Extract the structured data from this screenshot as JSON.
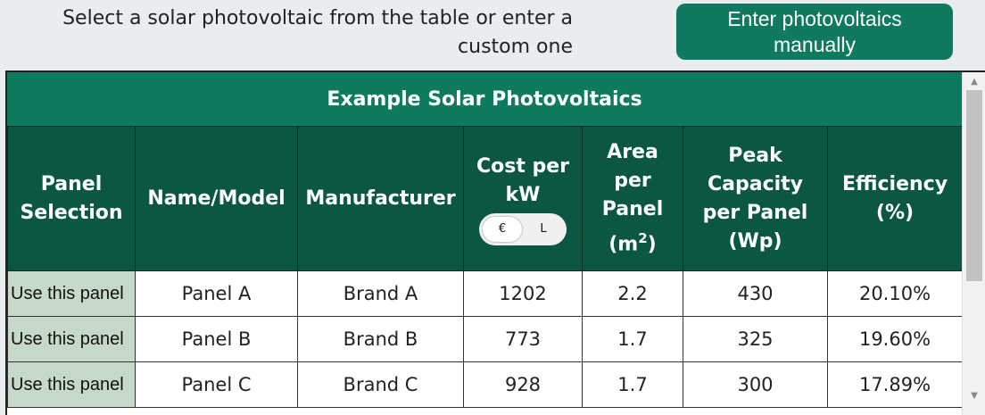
{
  "header": {
    "instruction": "Select a solar photovoltaic from the table or enter a custom one",
    "manual_button": "Enter photovoltaics manually"
  },
  "table": {
    "title": "Example Solar Photovoltaics",
    "columns": {
      "selection": "Panel Selection",
      "name": "Name/Model",
      "manufacturer": "Manufacturer",
      "cost": "Cost per kW",
      "area_label": "Area per Panel",
      "area_unit": "(m",
      "area_sup": "2",
      "area_close": ")",
      "peak": "Peak Capacity per Panel (Wp)",
      "efficiency": "Efficiency (%)"
    },
    "currency_toggle": {
      "option_1": "€",
      "option_2": "L",
      "selected": "€"
    },
    "rows": [
      {
        "select": "Use this panel",
        "name": "Panel A",
        "manufacturer": "Brand A",
        "cost": "1202",
        "area": "2.2",
        "peak": "430",
        "efficiency": "20.10%"
      },
      {
        "select": "Use this panel",
        "name": "Panel B",
        "manufacturer": "Brand B",
        "cost": "773",
        "area": "1.7",
        "peak": "325",
        "efficiency": "19.60%"
      },
      {
        "select": "Use this panel",
        "name": "Panel C",
        "manufacturer": "Brand C",
        "cost": "928",
        "area": "1.7",
        "peak": "300",
        "efficiency": "17.89%"
      }
    ]
  },
  "scrollbar": {
    "up_icon": "▲",
    "down_icon": "▼"
  },
  "colors": {
    "background": "#e9edef",
    "button": "#0f7a5f",
    "title_bar": "#0e7a5e",
    "header": "#0b5743",
    "select_cell": "#c6d8c7"
  }
}
